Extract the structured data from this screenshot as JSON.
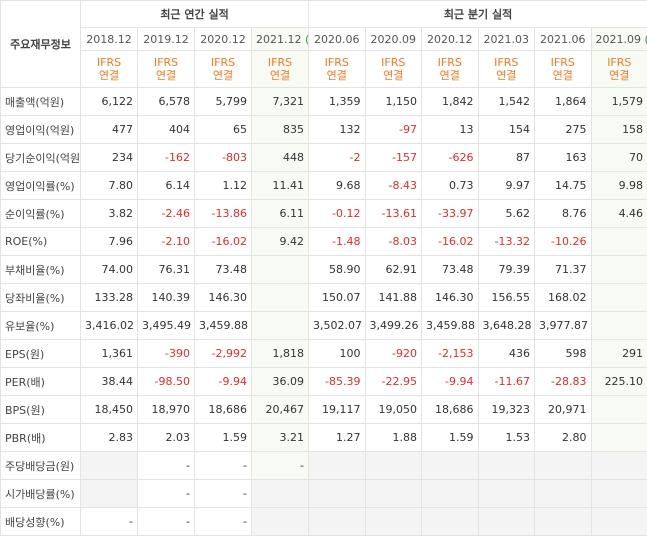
{
  "table": {
    "corner": "주요재무정보",
    "groups": [
      "최근 연간 실적",
      "최근 분기 실적"
    ],
    "periods": [
      "2018.12",
      "2019.12",
      "2020.12",
      {
        "date": "2021.12",
        "note": "(E)"
      },
      "2020.06",
      "2020.09",
      "2020.12",
      "2021.03",
      "2021.06",
      {
        "date": "2021.09",
        "note": "(E)"
      }
    ],
    "basis": [
      [
        "IFRS",
        "연결"
      ],
      [
        "IFRS",
        "연결"
      ],
      [
        "IFRS",
        "연결"
      ],
      [
        "IFRS",
        "연결"
      ],
      [
        "IFRS",
        "연결"
      ],
      [
        "IFRS",
        "연결"
      ],
      [
        "IFRS",
        "연결"
      ],
      [
        "IFRS",
        "연결"
      ],
      [
        "IFRS",
        "연결"
      ],
      [
        "IFRS",
        "연결"
      ]
    ],
    "rows": [
      {
        "label": "매출액(억원)",
        "values": [
          "6,122",
          "6,578",
          "5,799",
          "7,321",
          "1,359",
          "1,150",
          "1,842",
          "1,542",
          "1,864",
          "1,579"
        ]
      },
      {
        "label": "영업이익(억원)",
        "values": [
          "477",
          "404",
          "65",
          "835",
          "132",
          "-97",
          "13",
          "154",
          "275",
          "158"
        ]
      },
      {
        "label": "당기순이익(억원)",
        "values": [
          "234",
          "-162",
          "-803",
          "448",
          "-2",
          "-157",
          "-626",
          "87",
          "163",
          "70"
        ]
      },
      {
        "label": "영업이익률(%)",
        "values": [
          "7.80",
          "6.14",
          "1.12",
          "11.41",
          "9.68",
          "-8.43",
          "0.73",
          "9.97",
          "14.75",
          "9.98"
        ]
      },
      {
        "label": "순이익률(%)",
        "values": [
          "3.82",
          "-2.46",
          "-13.86",
          "6.11",
          "-0.12",
          "-13.61",
          "-33.97",
          "5.62",
          "8.76",
          "4.46"
        ]
      },
      {
        "label": "ROE(%)",
        "values": [
          "7.96",
          "-2.10",
          "-16.02",
          "9.42",
          "-1.48",
          "-8.03",
          "-16.02",
          "-13.32",
          "-10.26",
          null
        ]
      },
      {
        "label": "부채비율(%)",
        "values": [
          "74.00",
          "76.31",
          "73.48",
          null,
          "58.90",
          "62.91",
          "73.48",
          "79.39",
          "71.37",
          null
        ]
      },
      {
        "label": "당좌비율(%)",
        "values": [
          "133.28",
          "140.39",
          "146.30",
          null,
          "150.07",
          "141.88",
          "146.30",
          "156.55",
          "168.02",
          null
        ]
      },
      {
        "label": "유보율(%)",
        "values": [
          "3,416.02",
          "3,495.49",
          "3,459.88",
          null,
          "3,502.07",
          "3,499.26",
          "3,459.88",
          "3,648.28",
          "3,977.87",
          null
        ]
      },
      {
        "label": "EPS(원)",
        "values": [
          "1,361",
          "-390",
          "-2,992",
          "1,818",
          "100",
          "-920",
          "-2,153",
          "436",
          "598",
          "291"
        ]
      },
      {
        "label": "PER(배)",
        "values": [
          "38.44",
          "-98.50",
          "-9.94",
          "36.09",
          "-85.39",
          "-22.95",
          "-9.94",
          "-11.67",
          "-28.83",
          "225.10"
        ]
      },
      {
        "label": "BPS(원)",
        "values": [
          "18,450",
          "18,970",
          "18,686",
          "20,467",
          "19,117",
          "19,050",
          "18,686",
          "19,323",
          "20,971",
          null
        ]
      },
      {
        "label": "PBR(배)",
        "values": [
          "2.83",
          "2.03",
          "1.59",
          "3.21",
          "1.27",
          "1.88",
          "1.59",
          "1.53",
          "2.80",
          null
        ]
      },
      {
        "label": "주당배당금(원)",
        "values": [
          null,
          "-",
          "-",
          "-",
          null,
          null,
          null,
          null,
          null,
          null
        ]
      },
      {
        "label": "시가배당률(%)",
        "values": [
          null,
          "-",
          "-",
          null,
          null,
          null,
          null,
          null,
          null,
          null
        ]
      },
      {
        "label": "배당성향(%)",
        "values": [
          "-",
          "-",
          "-",
          null,
          null,
          null,
          null,
          null,
          null,
          null
        ]
      }
    ]
  }
}
